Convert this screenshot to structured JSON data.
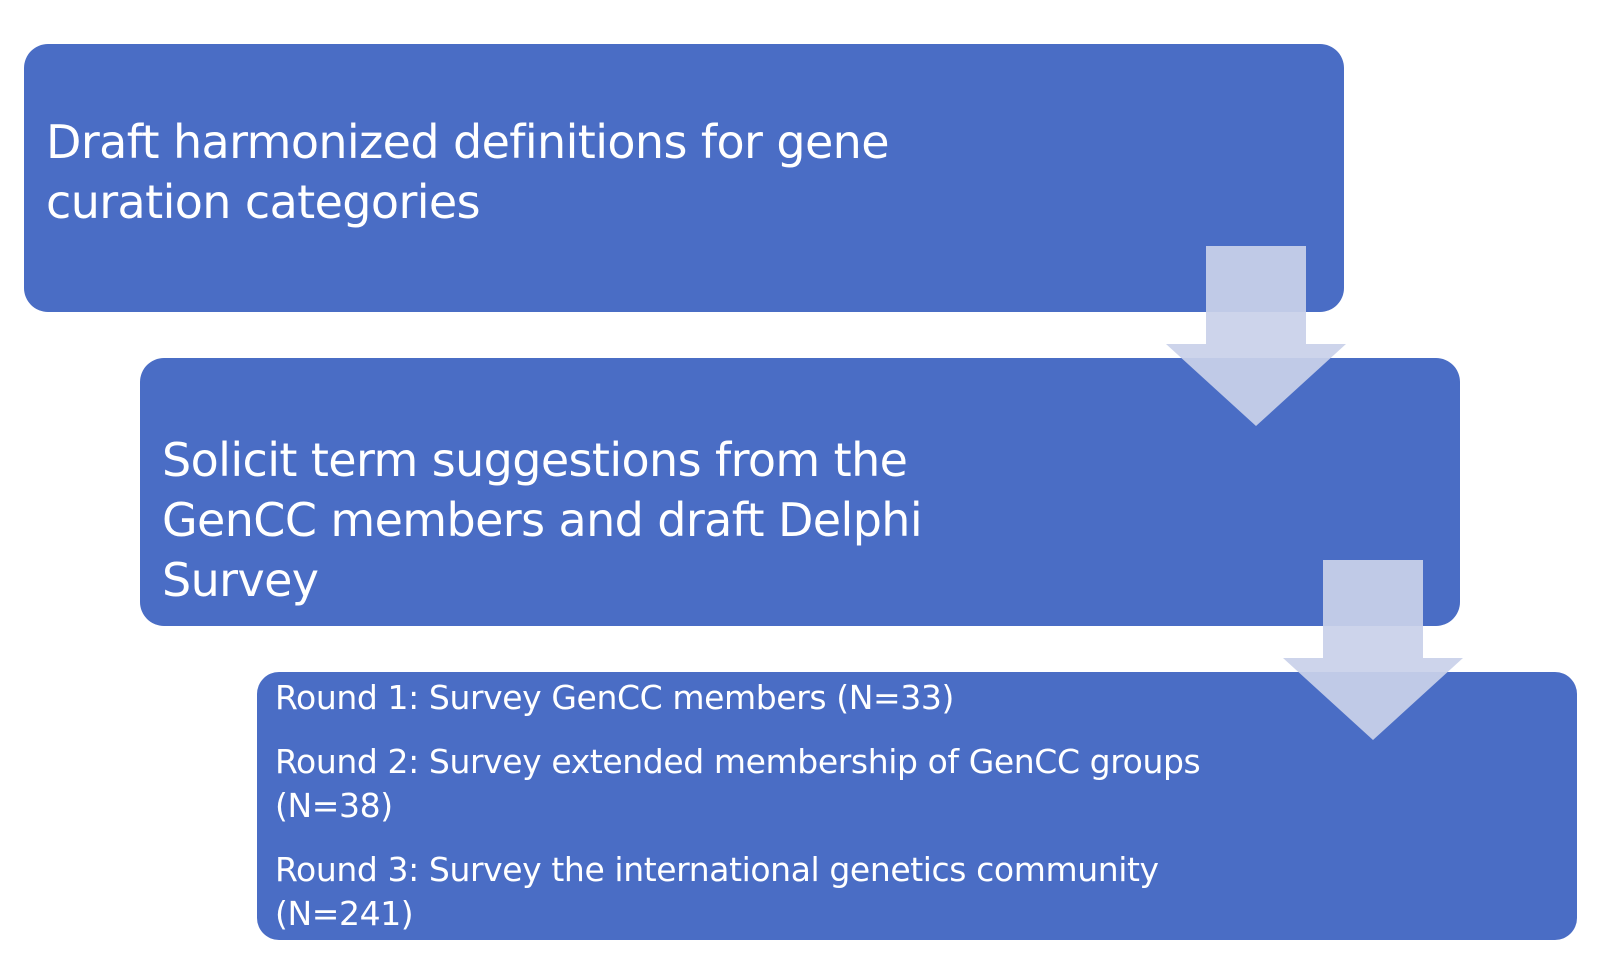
{
  "steps": [
    {
      "text": "Draft harmonized definitions for gene curation categories"
    },
    {
      "text": "Solicit term suggestions from the GenCC members and draft Delphi Survey"
    }
  ],
  "rounds": [
    {
      "text": "Round 1: Survey GenCC members (N=33)"
    },
    {
      "text": "Round 2: Survey extended membership of GenCC groups (N=38)"
    },
    {
      "text": "Round 3: Survey the international genetics community (N=241)"
    }
  ],
  "colors": {
    "box": "#4a6dc5",
    "arrow": "#c9d1ea",
    "text": "#ffffff"
  }
}
